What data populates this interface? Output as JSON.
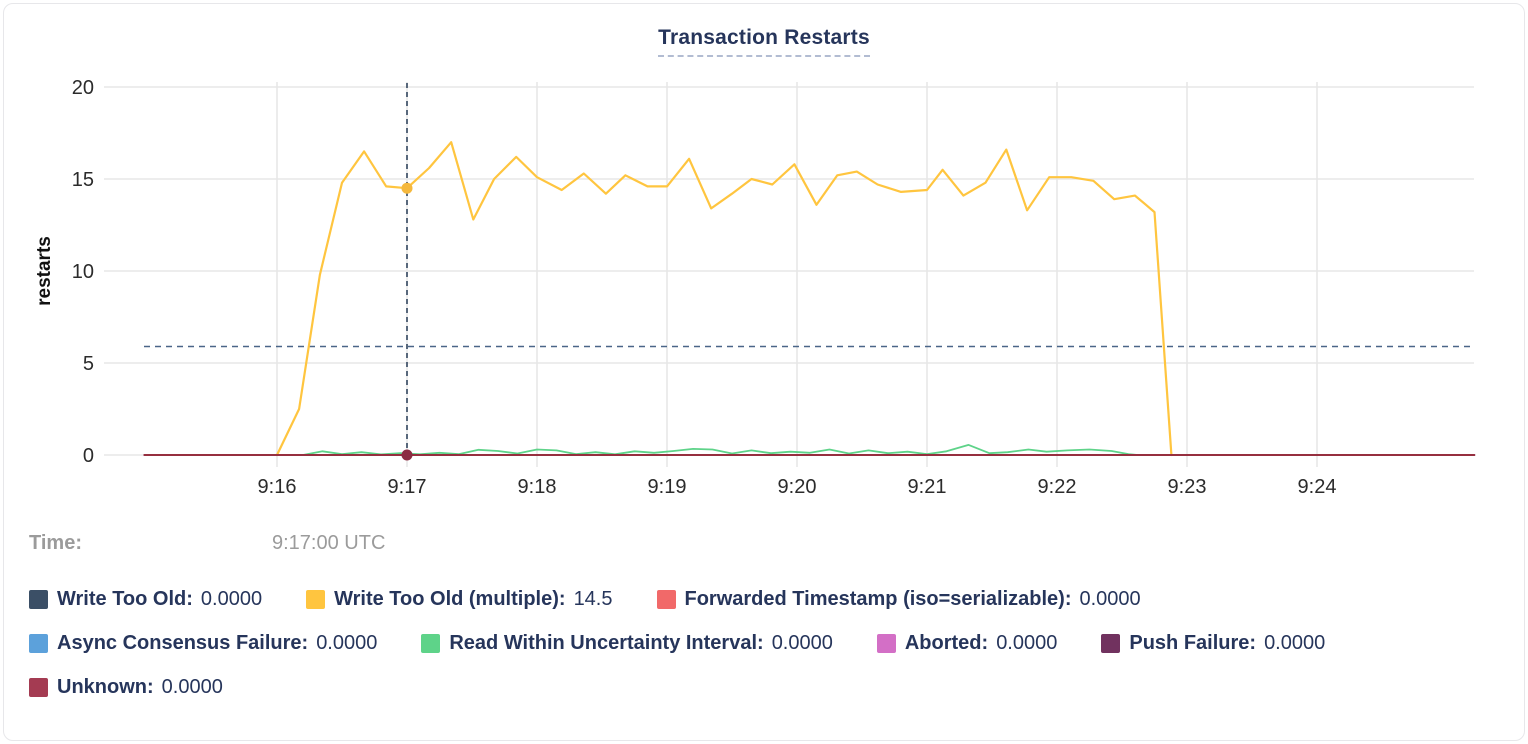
{
  "header": {
    "title": "Transaction Restarts"
  },
  "tooltip": {
    "time_label": "Time:",
    "time_value": "9:17:00 UTC"
  },
  "colors": {
    "title_text": "#26355b",
    "legend_text": "#26355b",
    "muted_text": "#9b9b9b",
    "axis_text": "#2b2b2b",
    "gridline": "#e7e7e7",
    "crosshair_vertical": "#33465f",
    "crosshair_horizontal": "#4a6588",
    "hover_dot_top": "#f5b83d",
    "hover_dot_zero": "#8b2c42"
  },
  "chart_data": {
    "type": "line",
    "title": "Transaction Restarts",
    "xlabel": "",
    "ylabel": "restarts",
    "ylim": [
      0,
      20
    ],
    "y_ticks": [
      0,
      5,
      10,
      15,
      20
    ],
    "x_tick_labels": [
      "9:16",
      "9:17",
      "9:18",
      "9:19",
      "9:20",
      "9:21",
      "9:22",
      "9:23",
      "9:24"
    ],
    "x_tick_minutes": [
      16,
      17,
      18,
      19,
      20,
      21,
      22,
      23,
      24
    ],
    "x_domain_minutes": [
      14.71,
      25.21
    ],
    "grid": true,
    "legend_position": "bottom",
    "hover": {
      "time_label": "9:17:00 UTC",
      "time_minutes": 17.0,
      "dots": [
        {
          "series_index": 1,
          "t": 17.0,
          "v": 14.5
        },
        {
          "series_index": 7,
          "t": 17.0,
          "v": 0
        }
      ]
    },
    "avg_dashed_line_value": 5.9,
    "series": [
      {
        "name": "Write Too Old",
        "color": "#3b4f66",
        "swatch": "#3b4f66",
        "value": "0.0000",
        "width": 1.8,
        "points": [
          [
            14.98,
            0
          ],
          [
            25.21,
            0
          ]
        ]
      },
      {
        "name": "Write Too Old (multiple)",
        "color": "#ffc53f",
        "swatch": "#ffc53f",
        "value": "14.5",
        "width": 2.2,
        "points": [
          [
            16.0,
            0
          ],
          [
            16.17,
            2.5
          ],
          [
            16.33,
            9.8
          ],
          [
            16.5,
            14.8
          ],
          [
            16.67,
            16.5
          ],
          [
            16.84,
            14.6
          ],
          [
            17.0,
            14.5
          ],
          [
            17.17,
            15.6
          ],
          [
            17.34,
            17.0
          ],
          [
            17.51,
            12.8
          ],
          [
            17.67,
            15.0
          ],
          [
            17.84,
            16.2
          ],
          [
            18.0,
            15.1
          ],
          [
            18.19,
            14.4
          ],
          [
            18.36,
            15.3
          ],
          [
            18.53,
            14.2
          ],
          [
            18.68,
            15.2
          ],
          [
            18.85,
            14.6
          ],
          [
            19.0,
            14.6
          ],
          [
            19.17,
            16.1
          ],
          [
            19.34,
            13.4
          ],
          [
            19.5,
            14.2
          ],
          [
            19.65,
            15.0
          ],
          [
            19.81,
            14.7
          ],
          [
            19.98,
            15.8
          ],
          [
            20.15,
            13.6
          ],
          [
            20.31,
            15.2
          ],
          [
            20.46,
            15.4
          ],
          [
            20.62,
            14.7
          ],
          [
            20.8,
            14.3
          ],
          [
            21.0,
            14.4
          ],
          [
            21.12,
            15.5
          ],
          [
            21.28,
            14.1
          ],
          [
            21.45,
            14.8
          ],
          [
            21.61,
            16.6
          ],
          [
            21.77,
            13.3
          ],
          [
            21.94,
            15.1
          ],
          [
            22.11,
            15.1
          ],
          [
            22.28,
            14.9
          ],
          [
            22.44,
            13.9
          ],
          [
            22.6,
            14.1
          ],
          [
            22.75,
            13.2
          ],
          [
            22.88,
            0
          ]
        ]
      },
      {
        "name": "Forwarded Timestamp (iso=serializable)",
        "color": "#f16969",
        "swatch": "#f16969",
        "value": "0.0000",
        "width": 1.8,
        "points": [
          [
            14.98,
            0
          ],
          [
            25.21,
            0
          ]
        ]
      },
      {
        "name": "Async Consensus Failure",
        "color": "#5ca1db",
        "swatch": "#5ca1db",
        "value": "0.0000",
        "width": 1.8,
        "points": [
          [
            14.98,
            0
          ],
          [
            25.21,
            0
          ]
        ]
      },
      {
        "name": "Read Within Uncertainty Interval",
        "color": "#5ed389",
        "swatch": "#5ed389",
        "value": "0.0000",
        "width": 1.8,
        "points": [
          [
            16.2,
            0
          ],
          [
            16.35,
            0.2
          ],
          [
            16.5,
            0.05
          ],
          [
            16.65,
            0.15
          ],
          [
            16.8,
            0.03
          ],
          [
            16.95,
            0.1
          ],
          [
            17.1,
            0.04
          ],
          [
            17.25,
            0.12
          ],
          [
            17.4,
            0.05
          ],
          [
            17.55,
            0.28
          ],
          [
            17.7,
            0.22
          ],
          [
            17.85,
            0.08
          ],
          [
            18.0,
            0.3
          ],
          [
            18.15,
            0.25
          ],
          [
            18.3,
            0.05
          ],
          [
            18.45,
            0.15
          ],
          [
            18.6,
            0.04
          ],
          [
            18.75,
            0.2
          ],
          [
            18.9,
            0.12
          ],
          [
            19.05,
            0.22
          ],
          [
            19.2,
            0.33
          ],
          [
            19.35,
            0.3
          ],
          [
            19.5,
            0.08
          ],
          [
            19.65,
            0.25
          ],
          [
            19.8,
            0.1
          ],
          [
            19.95,
            0.18
          ],
          [
            20.1,
            0.12
          ],
          [
            20.25,
            0.3
          ],
          [
            20.4,
            0.08
          ],
          [
            20.55,
            0.25
          ],
          [
            20.7,
            0.1
          ],
          [
            20.85,
            0.18
          ],
          [
            21.0,
            0.05
          ],
          [
            21.15,
            0.2
          ],
          [
            21.32,
            0.55
          ],
          [
            21.48,
            0.1
          ],
          [
            21.62,
            0.15
          ],
          [
            21.78,
            0.3
          ],
          [
            21.92,
            0.18
          ],
          [
            22.08,
            0.25
          ],
          [
            22.25,
            0.3
          ],
          [
            22.42,
            0.22
          ],
          [
            22.55,
            0.05
          ],
          [
            22.62,
            0
          ]
        ]
      },
      {
        "name": "Aborted",
        "color": "#d36fc6",
        "swatch": "#d36fc6",
        "value": "0.0000",
        "width": 1.8,
        "points": [
          [
            14.98,
            0
          ],
          [
            25.21,
            0
          ]
        ]
      },
      {
        "name": "Push Failure",
        "color": "#71325f",
        "swatch": "#71325f",
        "value": "0.0000",
        "width": 1.8,
        "points": [
          [
            14.98,
            0
          ],
          [
            25.21,
            0
          ]
        ]
      },
      {
        "name": "Unknown",
        "color": "#962f3f",
        "swatch": "#a43b52",
        "value": "0.0000",
        "width": 2.0,
        "points": [
          [
            14.98,
            0
          ],
          [
            25.21,
            0
          ]
        ]
      }
    ]
  }
}
